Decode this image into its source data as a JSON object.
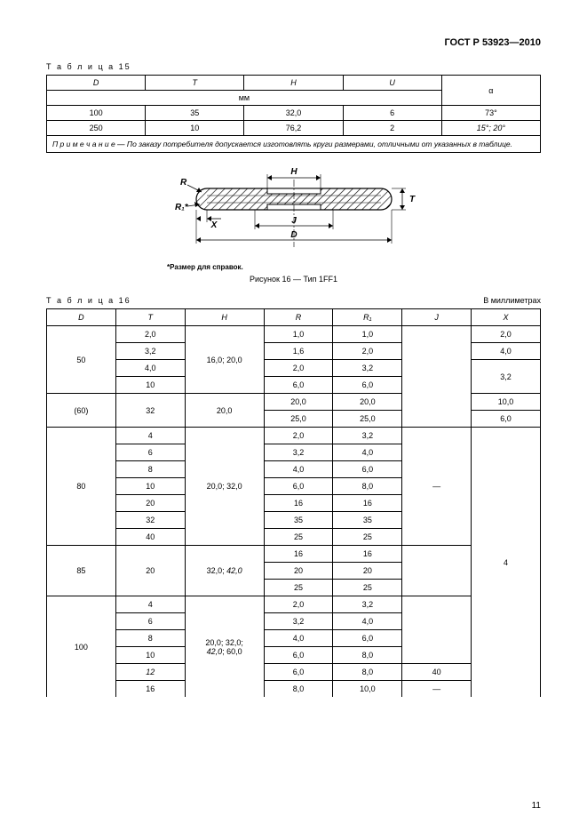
{
  "header": {
    "standard": "ГОСТ Р 53923—2010"
  },
  "table15": {
    "label": "Т а б л и ц а  15",
    "headers": {
      "D": "D",
      "T": "T",
      "H": "H",
      "U": "U",
      "alpha": "α",
      "mm": "мм"
    },
    "rows": [
      {
        "D": "100",
        "T": "35",
        "H": "32,0",
        "U": "6",
        "alpha": "73°"
      },
      {
        "D": "250",
        "T": "10",
        "H": "76,2",
        "U": "2",
        "alpha": "15°; 20°"
      }
    ],
    "note": "П р и м е ч а н и е — По заказу потребителя допускается изготовлять круги размерами, отличными от указанных в таблице."
  },
  "figure": {
    "labels": {
      "H": "H",
      "R": "R",
      "R1": "R₁",
      "X": "X",
      "J": "J",
      "D": "D",
      "T": "T"
    },
    "subnote": "*Размер для справок.",
    "caption": "Рисунок 16 — Тип 1FF1"
  },
  "table16": {
    "label": "Т а б л и ц а  16",
    "unit": "В миллиметрах",
    "headers": {
      "D": "D",
      "T": "T",
      "H": "H",
      "R": "R",
      "R1": "R₁",
      "J": "J",
      "X": "X"
    },
    "dash": "—",
    "groups": [
      {
        "D": "50",
        "H": "16,0; 20,0",
        "J": "",
        "rows": [
          {
            "T": "2,0",
            "R": "1,0",
            "R1": "1,0",
            "X": "2,0"
          },
          {
            "T": "3,2",
            "R": "1,6",
            "R1": "2,0",
            "X": "4,0"
          },
          {
            "T": "4,0",
            "R": "2,0",
            "R1": "3,2",
            "X": "3,2",
            "Xspan": 2
          },
          {
            "T": "10",
            "R": "6,0",
            "R1": "6,0"
          }
        ]
      },
      {
        "D": "(60)",
        "H": "20,0",
        "J": "",
        "rows": [
          {
            "T": "32",
            "Tspan": 2,
            "R": "20,0",
            "R1": "20,0",
            "X": "10,0"
          },
          {
            "R": "25,0",
            "R1": "25,0",
            "X": "6,0"
          }
        ]
      },
      {
        "D": "80",
        "H": "20,0; 32,0",
        "J": "—",
        "rows": [
          {
            "T": "4",
            "R": "2,0",
            "R1": "3,2"
          },
          {
            "T": "6",
            "R": "3,2",
            "R1": "4,0"
          },
          {
            "T": "8",
            "R": "4,0",
            "R1": "6,0"
          },
          {
            "T": "10",
            "R": "6,0",
            "R1": "8,0"
          },
          {
            "T": "20",
            "R": "16",
            "R1": "16"
          },
          {
            "T": "32",
            "R": "35",
            "R1": "35"
          },
          {
            "T": "40",
            "R": "25",
            "R1": "25"
          }
        ]
      },
      {
        "D": "85",
        "H": "32,0; 42,0",
        "J": "",
        "rows": [
          {
            "T": "20",
            "Tspan": 3,
            "R": "16",
            "R1": "16"
          },
          {
            "R": "20",
            "R1": "20"
          },
          {
            "R": "25",
            "R1": "25"
          }
        ]
      },
      {
        "D": "100",
        "H": "20,0; 32,0; 42,0; 60,0",
        "rows": [
          {
            "T": "4",
            "R": "2,0",
            "R1": "3,2",
            "J": ""
          },
          {
            "T": "6",
            "R": "3,2",
            "R1": "4,0",
            "J": ""
          },
          {
            "T": "8",
            "R": "4,0",
            "R1": "6,0",
            "J": ""
          },
          {
            "T": "10",
            "R": "6,0",
            "R1": "8,0",
            "J": ""
          },
          {
            "T": "12",
            "R": "6,0",
            "R1": "8,0",
            "J": "40",
            "Jspan": 1
          },
          {
            "T": "16",
            "R": "8,0",
            "R1": "10,0",
            "J": "—",
            "Jspan": 1
          }
        ]
      }
    ],
    "bigX": "4"
  },
  "pageNumber": "11",
  "style": {
    "colors": {
      "bg": "#ffffff",
      "fg": "#000000",
      "hatch": "#000000"
    },
    "fontsize": {
      "body": 10,
      "table": 9,
      "small": 8
    }
  }
}
